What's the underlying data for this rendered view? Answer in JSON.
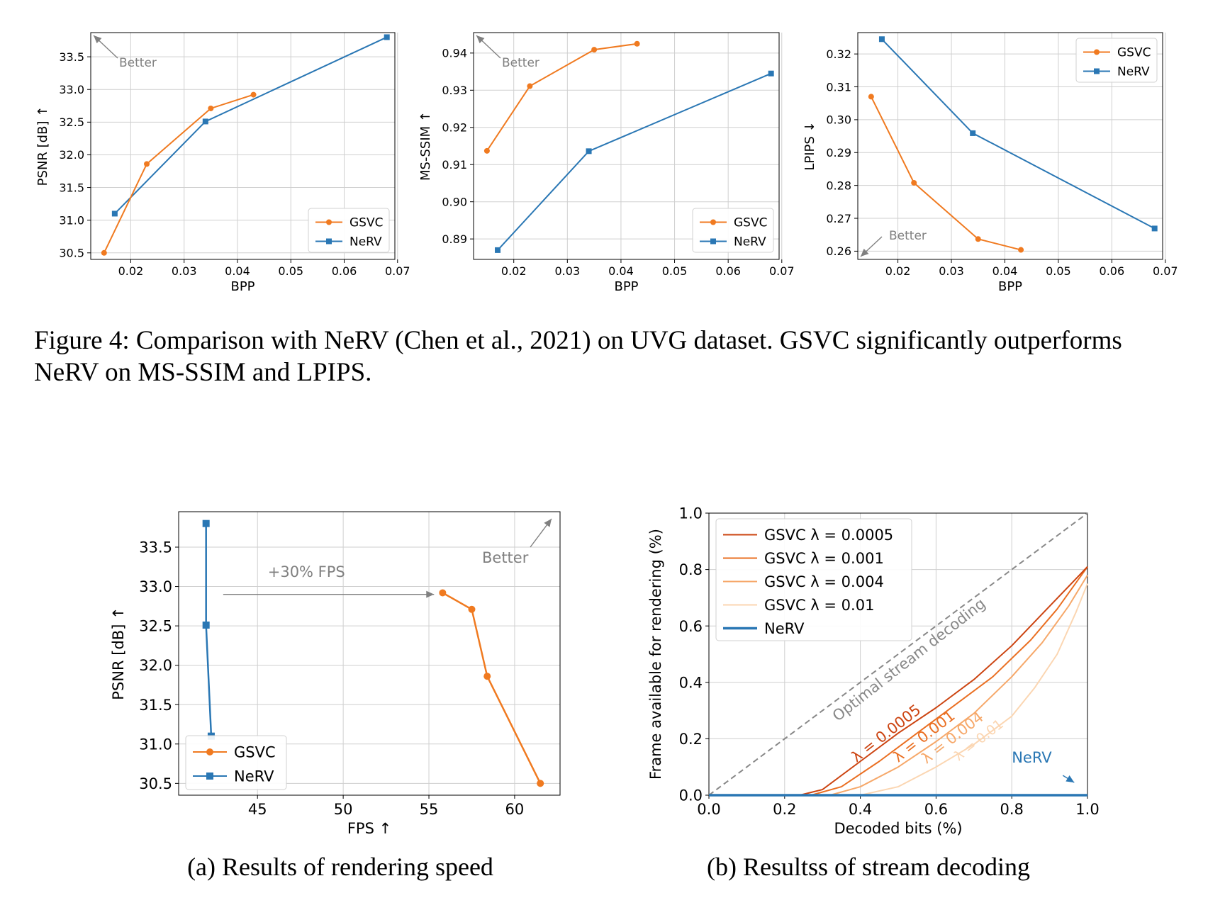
{
  "figure4_caption": "Figure 4: Comparison with NeRV (Chen et al., 2021) on UVG dataset. GSVC significantly outperforms NeRV on MS-SSIM and LPIPS.",
  "caption_a": "(a) Results of rendering speed",
  "caption_b": "(b) Resultss of stream decoding",
  "colors": {
    "gsvc": "#f07a20",
    "nerv": "#2a77b4",
    "lambda_0_0005": "#cc4411",
    "lambda_0_001": "#ea6f22",
    "lambda_0_004": "#f6a86a",
    "lambda_0_01": "#fbd6b2",
    "optimal": "#888888"
  },
  "chart_data": [
    {
      "id": "psnr-bpp",
      "type": "line",
      "xlabel": "BPP",
      "ylabel": "PSNR [dB] ↑",
      "xlim": [
        0.0125,
        0.0695
      ],
      "ylim": [
        30.4,
        33.87
      ],
      "xticks": [
        0.02,
        0.03,
        0.04,
        0.05,
        0.06,
        0.07
      ],
      "xtick_labels": [
        "0.02",
        "0.03",
        "0.04",
        "0.05",
        "0.06",
        "0.07"
      ],
      "yticks": [
        30.5,
        31.0,
        31.5,
        32.0,
        32.5,
        33.0,
        33.5
      ],
      "ytick_labels": [
        "30.5",
        "31.0",
        "31.5",
        "32.0",
        "32.5",
        "33.0",
        "33.5"
      ],
      "grid": true,
      "legend": "lower-right",
      "annotation": "Better",
      "annotation_direction": "upper-left",
      "series": [
        {
          "name": "GSVC",
          "marker": "circle",
          "x": [
            0.015,
            0.023,
            0.035,
            0.043
          ],
          "y": [
            30.5,
            31.86,
            32.71,
            32.92
          ]
        },
        {
          "name": "NeRV",
          "marker": "square",
          "x": [
            0.017,
            0.034,
            0.068
          ],
          "y": [
            31.1,
            32.51,
            33.8
          ]
        }
      ]
    },
    {
      "id": "msssim-bpp",
      "type": "line",
      "xlabel": "BPP",
      "ylabel": "MS-SSIM ↑",
      "xlim": [
        0.0125,
        0.0695
      ],
      "ylim": [
        0.8845,
        0.9455
      ],
      "xticks": [
        0.02,
        0.03,
        0.04,
        0.05,
        0.06,
        0.07
      ],
      "xtick_labels": [
        "0.02",
        "0.03",
        "0.04",
        "0.05",
        "0.06",
        "0.07"
      ],
      "yticks": [
        0.89,
        0.9,
        0.91,
        0.92,
        0.93,
        0.94
      ],
      "ytick_labels": [
        "0.89",
        "0.90",
        "0.91",
        "0.92",
        "0.93",
        "0.94"
      ],
      "grid": true,
      "legend": "lower-right",
      "annotation": "Better",
      "annotation_direction": "upper-left",
      "series": [
        {
          "name": "GSVC",
          "marker": "circle",
          "x": [
            0.015,
            0.023,
            0.035,
            0.043
          ],
          "y": [
            0.9137,
            0.9311,
            0.9409,
            0.9425
          ]
        },
        {
          "name": "NeRV",
          "marker": "square",
          "x": [
            0.017,
            0.034,
            0.068
          ],
          "y": [
            0.887,
            0.9136,
            0.9345
          ]
        }
      ]
    },
    {
      "id": "lpips-bpp",
      "type": "line",
      "xlabel": "BPP",
      "ylabel": "LPIPS ↓",
      "xlim": [
        0.0125,
        0.0695
      ],
      "ylim": [
        0.2575,
        0.3265
      ],
      "xticks": [
        0.02,
        0.03,
        0.04,
        0.05,
        0.06,
        0.07
      ],
      "xtick_labels": [
        "0.02",
        "0.03",
        "0.04",
        "0.05",
        "0.06",
        "0.07"
      ],
      "yticks": [
        0.26,
        0.27,
        0.28,
        0.29,
        0.3,
        0.31,
        0.32
      ],
      "ytick_labels": [
        "0.26",
        "0.27",
        "0.28",
        "0.29",
        "0.30",
        "0.31",
        "0.32"
      ],
      "grid": true,
      "legend": "upper-right",
      "annotation": "Better",
      "annotation_direction": "lower-left",
      "series": [
        {
          "name": "GSVC",
          "marker": "circle",
          "x": [
            0.015,
            0.023,
            0.035,
            0.043
          ],
          "y": [
            0.307,
            0.2808,
            0.2637,
            0.2604
          ]
        },
        {
          "name": "NeRV",
          "marker": "square",
          "x": [
            0.017,
            0.034,
            0.068
          ],
          "y": [
            0.3245,
            0.2959,
            0.2669
          ]
        }
      ]
    },
    {
      "id": "psnr-fps",
      "type": "line",
      "xlabel": "FPS ↑",
      "ylabel": "PSNR [dB] ↑",
      "xlim": [
        40.4,
        62.65
      ],
      "ylim": [
        30.35,
        33.95
      ],
      "xticks": [
        45,
        50,
        55,
        60
      ],
      "xtick_labels": [
        "45",
        "50",
        "55",
        "60"
      ],
      "yticks": [
        30.5,
        31.0,
        31.5,
        32.0,
        32.5,
        33.0,
        33.5
      ],
      "ytick_labels": [
        "30.5",
        "31.0",
        "31.5",
        "32.0",
        "32.5",
        "33.0",
        "33.5"
      ],
      "grid": true,
      "legend": "lower-left",
      "annotations": [
        {
          "text": "+30% FPS",
          "arrow_from": [
            43.0,
            32.9
          ],
          "arrow_to": [
            55.3,
            32.9
          ]
        },
        {
          "text": "Better",
          "direction": "upper-right"
        }
      ],
      "series": [
        {
          "name": "GSVC",
          "marker": "circle",
          "x": [
            55.8,
            57.5,
            58.4,
            61.5
          ],
          "y": [
            32.92,
            32.71,
            31.86,
            30.5
          ]
        },
        {
          "name": "NeRV",
          "marker": "square",
          "x": [
            42.0,
            42.0,
            42.3
          ],
          "y": [
            33.8,
            32.51,
            31.1
          ]
        }
      ]
    },
    {
      "id": "stream-decoding",
      "type": "line",
      "xlabel": "Decoded bits (%)",
      "ylabel": "Frame available for rendering (%)",
      "xlim": [
        0.0,
        1.0
      ],
      "ylim": [
        0.0,
        1.0
      ],
      "xticks": [
        0.0,
        0.2,
        0.4,
        0.6,
        0.8,
        1.0
      ],
      "xtick_labels": [
        "0.0",
        "0.2",
        "0.4",
        "0.6",
        "0.8",
        "1.0"
      ],
      "yticks": [
        0.0,
        0.2,
        0.4,
        0.6,
        0.8,
        1.0
      ],
      "ytick_labels": [
        "0.0",
        "0.2",
        "0.4",
        "0.6",
        "0.8",
        "1.0"
      ],
      "grid": true,
      "legend": "upper-left",
      "annotations": [
        {
          "text": "Optimal stream decoding"
        },
        {
          "text": "λ = 0.0005"
        },
        {
          "text": "λ = 0.001"
        },
        {
          "text": "λ = 0.004"
        },
        {
          "text": "λ = 0.01"
        },
        {
          "text": "NeRV"
        }
      ],
      "optimal": {
        "x": [
          0.0,
          1.0
        ],
        "y": [
          0.0,
          1.0
        ]
      },
      "series": [
        {
          "name": "GSVC λ = 0.0005",
          "x": [
            0.0,
            0.24,
            0.3,
            0.4,
            0.5,
            0.6,
            0.7,
            0.8,
            0.9,
            1.0
          ],
          "y": [
            0.0,
            0.0,
            0.02,
            0.12,
            0.22,
            0.31,
            0.41,
            0.53,
            0.67,
            0.81
          ]
        },
        {
          "name": "GSVC λ = 0.001",
          "x": [
            0.0,
            0.27,
            0.35,
            0.45,
            0.55,
            0.65,
            0.75,
            0.85,
            0.92,
            1.0
          ],
          "y": [
            0.0,
            0.0,
            0.03,
            0.12,
            0.22,
            0.32,
            0.42,
            0.55,
            0.66,
            0.81
          ]
        },
        {
          "name": "GSVC λ = 0.004",
          "x": [
            0.0,
            0.32,
            0.4,
            0.5,
            0.6,
            0.7,
            0.8,
            0.88,
            0.95,
            1.0
          ],
          "y": [
            0.0,
            0.0,
            0.03,
            0.1,
            0.19,
            0.29,
            0.42,
            0.54,
            0.67,
            0.78
          ]
        },
        {
          "name": "GSVC λ = 0.01",
          "x": [
            0.0,
            0.4,
            0.5,
            0.6,
            0.7,
            0.8,
            0.86,
            0.92,
            0.97,
            1.0
          ],
          "y": [
            0.0,
            0.0,
            0.03,
            0.1,
            0.18,
            0.28,
            0.38,
            0.5,
            0.65,
            0.75
          ]
        },
        {
          "name": "NeRV",
          "x": [
            0.0,
            1.0
          ],
          "y": [
            0.0,
            0.0
          ]
        }
      ]
    }
  ]
}
